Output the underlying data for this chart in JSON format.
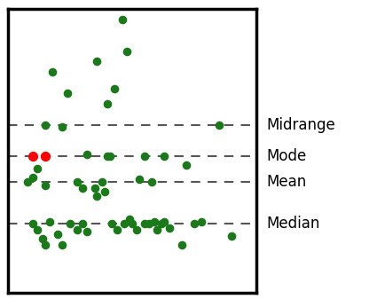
{
  "background_color": "#ffffff",
  "border_color": "#000000",
  "green_color": "#1a7a1a",
  "red_color": "#ff0000",
  "line_color": "#555555",
  "midrange_y": 6.5,
  "mode_y": 5.0,
  "mean_y": 3.8,
  "median_y": 1.8,
  "xlim": [
    0,
    10
  ],
  "ylim": [
    -1.5,
    12
  ],
  "labels": [
    "Midrange",
    "Mode",
    "Mean",
    "Median"
  ],
  "label_fontsize": 12,
  "green_points": [
    [
      1.5,
      6.5
    ],
    [
      2.2,
      6.4
    ],
    [
      2.8,
      3.8
    ],
    [
      3.0,
      3.5
    ],
    [
      3.2,
      5.1
    ],
    [
      3.6,
      9.5
    ],
    [
      4.0,
      7.5
    ],
    [
      4.1,
      5.0
    ],
    [
      4.3,
      8.2
    ],
    [
      4.6,
      11.5
    ],
    [
      4.8,
      10.0
    ],
    [
      5.5,
      5.0
    ],
    [
      5.8,
      3.8
    ],
    [
      6.3,
      5.0
    ],
    [
      7.2,
      4.6
    ],
    [
      8.5,
      6.5
    ],
    [
      1.0,
      1.8
    ],
    [
      1.2,
      1.5
    ],
    [
      1.4,
      1.1
    ],
    [
      1.5,
      0.8
    ],
    [
      1.7,
      1.9
    ],
    [
      2.0,
      1.3
    ],
    [
      2.2,
      0.8
    ],
    [
      2.5,
      1.8
    ],
    [
      2.8,
      1.5
    ],
    [
      3.0,
      1.8
    ],
    [
      3.2,
      1.4
    ],
    [
      3.8,
      3.8
    ],
    [
      3.9,
      3.3
    ],
    [
      4.2,
      1.8
    ],
    [
      4.4,
      1.5
    ],
    [
      4.7,
      1.8
    ],
    [
      4.9,
      2.0
    ],
    [
      5.0,
      1.8
    ],
    [
      5.2,
      1.5
    ],
    [
      5.5,
      1.8
    ],
    [
      5.7,
      1.8
    ],
    [
      5.9,
      1.9
    ],
    [
      6.0,
      1.5
    ],
    [
      6.2,
      1.8
    ],
    [
      6.3,
      1.9
    ],
    [
      6.5,
      1.6
    ],
    [
      7.0,
      0.8
    ],
    [
      7.5,
      1.8
    ],
    [
      7.8,
      1.9
    ],
    [
      9.0,
      1.2
    ],
    [
      0.8,
      3.8
    ],
    [
      1.0,
      4.0
    ],
    [
      1.2,
      4.4
    ],
    [
      1.5,
      3.6
    ],
    [
      3.5,
      3.5
    ],
    [
      3.6,
      3.1
    ],
    [
      5.3,
      3.9
    ],
    [
      1.8,
      9.0
    ],
    [
      2.4,
      8.0
    ],
    [
      4.0,
      5.0
    ]
  ],
  "red_points": [
    [
      1.0,
      5.0
    ],
    [
      1.5,
      5.0
    ]
  ]
}
